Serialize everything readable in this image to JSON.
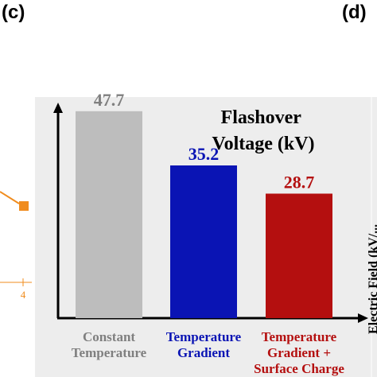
{
  "panels": {
    "left": "(c)",
    "right": "(d)"
  },
  "chart_data": {
    "type": "bar",
    "title_lines": [
      "Flashover",
      "Voltage (kV)"
    ],
    "categories": [
      [
        "Constant",
        "Temperature"
      ],
      [
        "Temperature",
        "Gradient"
      ],
      [
        "Temperature",
        "Gradient +",
        "Surface Charge"
      ]
    ],
    "values": [
      47.7,
      35.2,
      28.7
    ],
    "value_labels": [
      "47.7",
      "35.2",
      "28.7"
    ],
    "colors": [
      "#bdbdbd",
      "#0a14b4",
      "#b40f0f"
    ],
    "label_colors": [
      "#7f7f7f",
      "#0a14b4",
      "#b40f0f"
    ],
    "ylim": [
      0,
      55
    ],
    "grid": false,
    "legend": "none"
  },
  "left_fragment": {
    "tick_label": "4",
    "marker_color": "#f08c1e"
  },
  "right_fragment": {
    "axis_label": "Electric Field (kV/..."
  }
}
